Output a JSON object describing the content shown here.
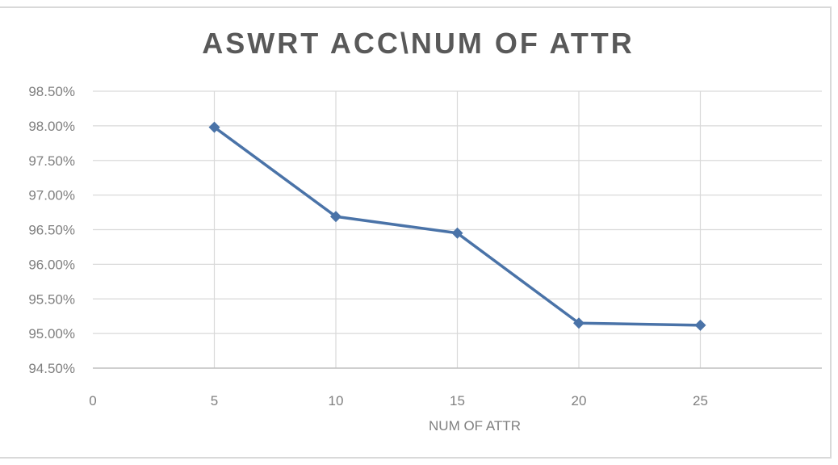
{
  "chart_data": {
    "type": "line",
    "title": "ASWRT ACC\\NUM  OF ATTR",
    "xlabel": "NUM OF ATTR",
    "ylabel": "",
    "xlim": [
      0,
      30
    ],
    "ylim": [
      94.5,
      98.5
    ],
    "x_ticks": [
      0,
      5,
      10,
      15,
      20,
      25
    ],
    "x_tick_labels": [
      "0",
      "5",
      "10",
      "15",
      "20",
      "25"
    ],
    "y_ticks": [
      94.5,
      95.0,
      95.5,
      96.0,
      96.5,
      97.0,
      97.5,
      98.0,
      98.5
    ],
    "y_tick_labels": [
      "94.50%",
      "95.00%",
      "95.50%",
      "96.00%",
      "96.50%",
      "97.00%",
      "97.50%",
      "98.00%",
      "98.50%"
    ],
    "grid": true,
    "legend": "none",
    "series": [
      {
        "color": "#4a73a8",
        "marker": "diamond",
        "x": [
          5,
          10,
          15,
          20,
          25
        ],
        "y": [
          97.98,
          96.69,
          96.45,
          95.15,
          95.12
        ]
      }
    ]
  }
}
